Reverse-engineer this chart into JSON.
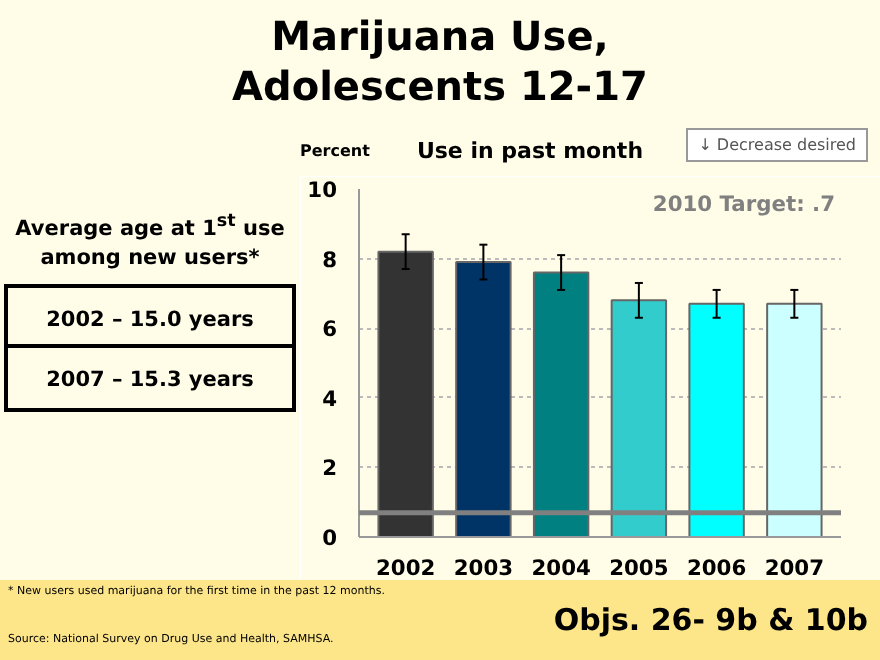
{
  "chart_data": {
    "type": "bar",
    "title": "Marijuana Use,\nAdolescents 12-17",
    "subtitle": "Use in past month",
    "ylabel": "Percent",
    "categories": [
      "2002",
      "2003",
      "2004",
      "2005",
      "2006",
      "2007"
    ],
    "values": [
      8.2,
      7.9,
      7.6,
      6.8,
      6.7,
      6.7
    ],
    "colors": [
      "#333333",
      "#003366",
      "#008080",
      "#33cccc",
      "#00ffff",
      "#ccffff"
    ],
    "errors": [
      [
        7.7,
        8.7
      ],
      [
        7.4,
        8.4
      ],
      [
        7.1,
        8.1
      ],
      [
        6.3,
        7.3
      ],
      [
        6.3,
        7.1
      ],
      [
        6.3,
        7.1
      ]
    ],
    "ylim": [
      0,
      10
    ],
    "yticks": [
      0,
      2,
      4,
      6,
      8,
      10
    ],
    "grid": "y",
    "ref_lines": [
      {
        "axis": "y",
        "value": 0.7,
        "label": "2010 Target: .7",
        "color": "#808080"
      }
    ],
    "annotations": [
      "↓ Decrease desired",
      "Average age at 1$^{st}$ use\namong new users*",
      "2002 – 15.0 years",
      "2007 – 15.3 years",
      "* New users used marijuana for the first time in the past 12 months.",
      "Source: National Survey on Drug Use and Health, SAMHSA.",
      "Objs. 26- 9b & 10b"
    ]
  }
}
